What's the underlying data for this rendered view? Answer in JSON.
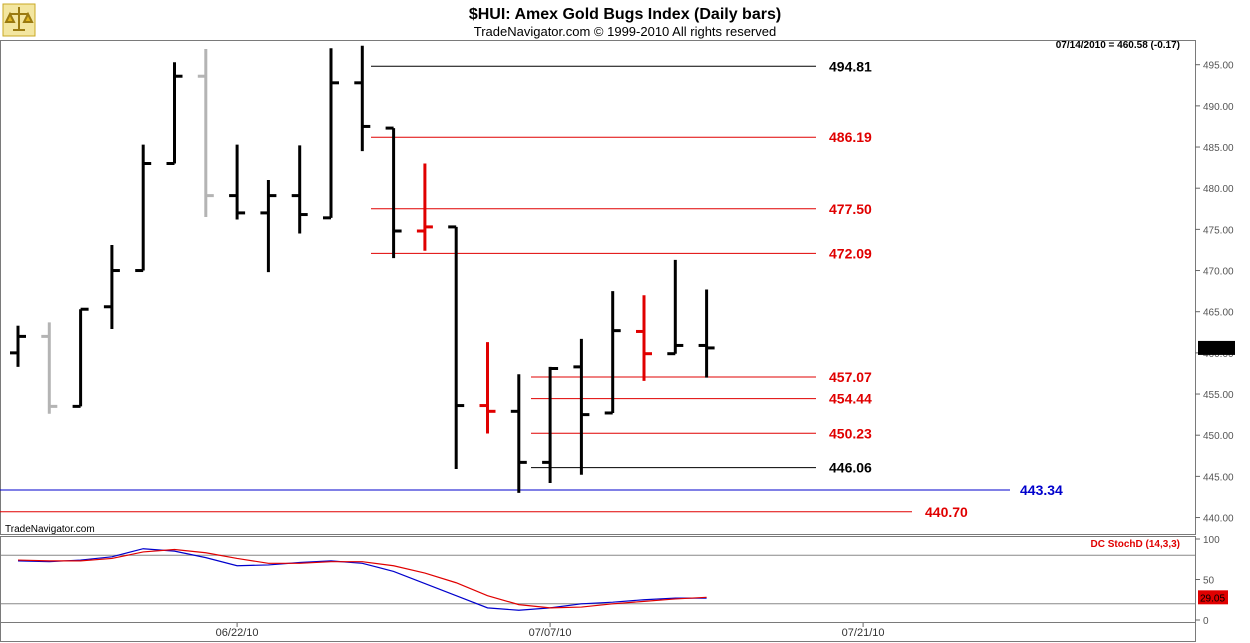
{
  "header": {
    "title": "$HUI:  Amex Gold Bugs Index  (Daily bars)",
    "subtitle": "TradeNavigator.com © 1999-2010 All rights reserved",
    "last_quote": "07/14/2010 = 460.58 (-0.17)",
    "watermark": "TradeNavigator.com"
  },
  "colors": {
    "up": "#000000",
    "down_light": "#b4b4b4",
    "highlight": "#e00000",
    "level_red": "#e00000",
    "level_black": "#000000",
    "level_blue": "#0000cc",
    "stoch_k": "#0000cc",
    "stoch_d": "#e00000"
  },
  "chart_data": [
    {
      "type": "ohlc",
      "title": "$HUI:  Amex Gold Bugs Index  (Daily bars)",
      "ylim": [
        438,
        498
      ],
      "y_ticks": [
        440,
        445,
        450,
        455,
        460,
        465,
        470,
        475,
        480,
        485,
        490,
        495
      ],
      "last_price_label": "460.58",
      "bars": [
        {
          "color": "black",
          "open": 460.0,
          "high": 463.3,
          "low": 458.3,
          "close": 462.0
        },
        {
          "color": "gray",
          "open": 462.0,
          "high": 463.7,
          "low": 452.6,
          "close": 453.5
        },
        {
          "color": "black",
          "open": 453.5,
          "high": 465.3,
          "low": 453.5,
          "close": 465.3
        },
        {
          "color": "black",
          "open": 465.6,
          "high": 473.1,
          "low": 462.9,
          "close": 470.0
        },
        {
          "color": "black",
          "open": 470.0,
          "high": 485.3,
          "low": 470.0,
          "close": 483.0
        },
        {
          "color": "black",
          "open": 483.0,
          "high": 495.3,
          "low": 483.0,
          "close": 493.6
        },
        {
          "color": "gray",
          "open": 493.6,
          "high": 496.9,
          "low": 476.5,
          "close": 479.1
        },
        {
          "color": "black",
          "open": 479.1,
          "high": 485.3,
          "low": 476.2,
          "close": 477.0
        },
        {
          "color": "black",
          "open": 477.0,
          "high": 481.0,
          "low": 469.8,
          "close": 479.1
        },
        {
          "color": "black",
          "open": 479.1,
          "high": 485.2,
          "low": 474.5,
          "close": 476.8
        },
        {
          "color": "black",
          "open": 476.4,
          "high": 497.0,
          "low": 476.4,
          "close": 492.8
        },
        {
          "color": "black",
          "open": 492.8,
          "high": 497.3,
          "low": 484.5,
          "close": 487.5
        },
        {
          "color": "black",
          "open": 487.3,
          "high": 487.3,
          "low": 471.5,
          "close": 474.8
        },
        {
          "color": "red",
          "open": 474.8,
          "high": 483.0,
          "low": 472.4,
          "close": 475.3
        },
        {
          "color": "black",
          "open": 475.3,
          "high": 475.3,
          "low": 445.9,
          "close": 453.6
        },
        {
          "color": "red",
          "open": 453.6,
          "high": 461.3,
          "low": 450.2,
          "close": 452.9
        },
        {
          "color": "black",
          "open": 452.9,
          "high": 457.4,
          "low": 443.0,
          "close": 446.7
        },
        {
          "color": "black",
          "open": 446.7,
          "high": 458.3,
          "low": 444.2,
          "close": 458.1
        },
        {
          "color": "black",
          "open": 458.3,
          "high": 461.7,
          "low": 445.2,
          "close": 452.5
        },
        {
          "color": "black",
          "open": 452.7,
          "high": 467.5,
          "low": 452.7,
          "close": 462.7
        },
        {
          "color": "red",
          "open": 462.6,
          "high": 467.0,
          "low": 456.6,
          "close": 459.9
        },
        {
          "color": "black",
          "open": 459.9,
          "high": 471.3,
          "low": 459.9,
          "close": 460.9
        },
        {
          "color": "black",
          "open": 460.9,
          "high": 467.7,
          "low": 457.0,
          "close": 460.6
        }
      ],
      "levels": [
        {
          "value": 494.81,
          "label": "494.81",
          "color": "black"
        },
        {
          "value": 486.19,
          "label": "486.19",
          "color": "red"
        },
        {
          "value": 477.5,
          "label": "477.50",
          "color": "red"
        },
        {
          "value": 472.09,
          "label": "472.09",
          "color": "red"
        },
        {
          "value": 457.07,
          "label": "457.07",
          "color": "red"
        },
        {
          "value": 454.44,
          "label": "454.44",
          "color": "red"
        },
        {
          "value": 450.23,
          "label": "450.23",
          "color": "red"
        },
        {
          "value": 446.06,
          "label": "446.06",
          "color": "black"
        },
        {
          "value": 443.34,
          "label": "443.34",
          "color": "blue"
        },
        {
          "value": 440.7,
          "label": "440.70",
          "color": "red"
        }
      ],
      "x_tick_labels": [
        {
          "label": "06/22/10",
          "bar_index": 7
        },
        {
          "label": "07/07/10",
          "bar_index": 17
        },
        {
          "label": "07/21/10",
          "bar_index": 27
        }
      ]
    },
    {
      "type": "line",
      "title": "DC StochD (14,3,3)",
      "ylim": [
        0,
        100
      ],
      "y_ticks": [
        0,
        50,
        100
      ],
      "reference_lines": [
        20,
        80
      ],
      "last_value_label": "29.05",
      "series": [
        {
          "values": [
            73,
            72,
            74,
            78,
            88,
            85,
            77,
            67,
            68,
            71,
            73,
            70,
            60,
            45,
            30,
            15,
            12,
            15,
            20,
            22,
            25,
            27,
            27
          ]
        },
        {
          "values": [
            74,
            73,
            73,
            76,
            84,
            87,
            83,
            76,
            70,
            70,
            72,
            72,
            67,
            58,
            46,
            30,
            19,
            15,
            16,
            20,
            23,
            26,
            28
          ]
        }
      ]
    }
  ]
}
